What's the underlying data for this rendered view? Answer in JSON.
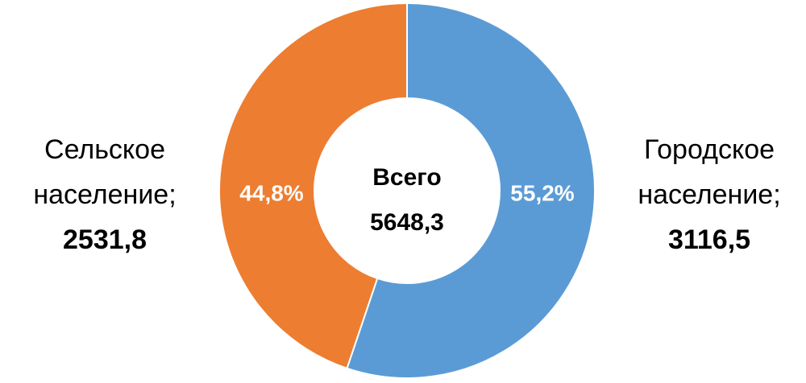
{
  "chart_data": {
    "type": "donut",
    "categories": [
      "Городское население;",
      "Сельское население;"
    ],
    "values": [
      3116.5,
      2531.8
    ],
    "value_labels": [
      "3116,5",
      "2531,8"
    ],
    "percentages": [
      55.2,
      44.8
    ],
    "percentage_labels": [
      "55,2%",
      "44,8%"
    ],
    "colors": [
      "#5b9bd5",
      "#ed7d31"
    ],
    "total": {
      "label": "Всего",
      "value": 5648.3,
      "value_label": "5648,3"
    }
  }
}
